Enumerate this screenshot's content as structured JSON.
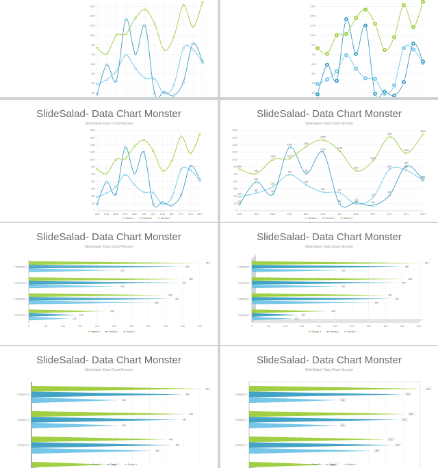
{
  "slide_title": "SlideSalad- Data Chart Monster",
  "slide_subtitle": "SlideSalad- Data Chart Monster",
  "colors": {
    "series1": "#6fc4e6",
    "series2": "#3a9ec2",
    "series3": "#9ccc3a",
    "background": "#cfd3d6"
  },
  "chart_data": [
    {
      "type": "line",
      "x": [
        "JAN",
        "FEB",
        "MAR",
        "APR",
        "MAY",
        "JUN",
        "JUL",
        "AUG",
        "SEP",
        "OCT",
        "NOV",
        "DEC"
      ],
      "ylim": [
        0,
        1600
      ],
      "y_ticks": [
        "0",
        "150",
        "300",
        "450",
        "600",
        "750",
        "900",
        "1050",
        "1200",
        "1350",
        "1500",
        "1650"
      ],
      "series": [
        {
          "name": "Series 1",
          "values": [
            290,
            360,
            490,
            740,
            530,
            380,
            370,
            140,
            270,
            850,
            830,
            620
          ]
        },
        {
          "name": "Series 2",
          "values": [
            130,
            590,
            340,
            1300,
            760,
            1200,
            140,
            170,
            110,
            320,
            920,
            640
          ]
        },
        {
          "name": "Series 3",
          "values": [
            850,
            760,
            1050,
            1070,
            1320,
            1450,
            1230,
            820,
            1020,
            1520,
            1180,
            1570
          ]
        }
      ],
      "legend": "bottom"
    },
    {
      "type": "bar",
      "orientation": "horizontal",
      "categories": [
        "Category 1",
        "Category 2",
        "Category 3",
        "Category 4"
      ],
      "xlim": [
        0,
        500
      ],
      "x_ticks": [
        "0",
        "50",
        "100",
        "150",
        "200",
        "250",
        "300",
        "350",
        "400",
        "450",
        "500"
      ],
      "series": [
        {
          "name": "Series 1",
          "values": [
            120,
            360,
            260,
            260
          ]
        },
        {
          "name": "Series 2",
          "values": [
            140,
            420,
            440,
            450
          ]
        },
        {
          "name": "Series 3",
          "values": [
            230,
            400,
            460,
            510
          ]
        }
      ],
      "legend": "bottom"
    }
  ]
}
